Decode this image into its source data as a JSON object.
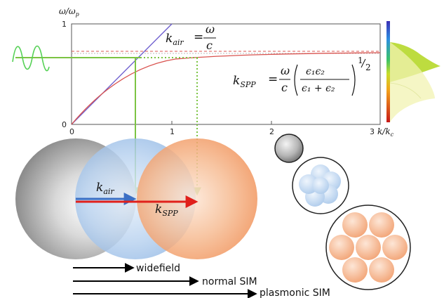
{
  "plot": {
    "y_axis_label": "ω/ω",
    "y_axis_label_sub": "p",
    "x_axis_label": "k/k",
    "x_axis_label_sub": "c",
    "y_ticks": [
      "0",
      "1"
    ],
    "x_ticks": [
      "0",
      "1",
      "2",
      "3"
    ]
  },
  "equations": {
    "k_air": {
      "lhs": "k",
      "lhs_sub": "air",
      "equals": "=",
      "numerator": "ω",
      "denominator": "c"
    },
    "k_spp": {
      "lhs": "k",
      "lhs_sub": "SPP",
      "equals": "=",
      "omega": "ω",
      "c": "c",
      "frac_num": "ϵ₁ϵ₂",
      "frac_den": "ϵ₁ + ϵ₂",
      "exponent_num": "1",
      "exponent_den": "2"
    }
  },
  "vectors": {
    "air_label": "k",
    "air_sub": "air",
    "spp_label": "k",
    "spp_sub": "SPP"
  },
  "legend": [
    {
      "text": "widefield"
    },
    {
      "text": "normal SIM"
    },
    {
      "text": "plasmonic SIM"
    }
  ],
  "colors": {
    "air_line": "#6a5acd",
    "spp_curve": "#d9534f",
    "green": "#7cc443",
    "red_arrow": "#e0201b",
    "blue_arrow": "#3b6fc4"
  }
}
